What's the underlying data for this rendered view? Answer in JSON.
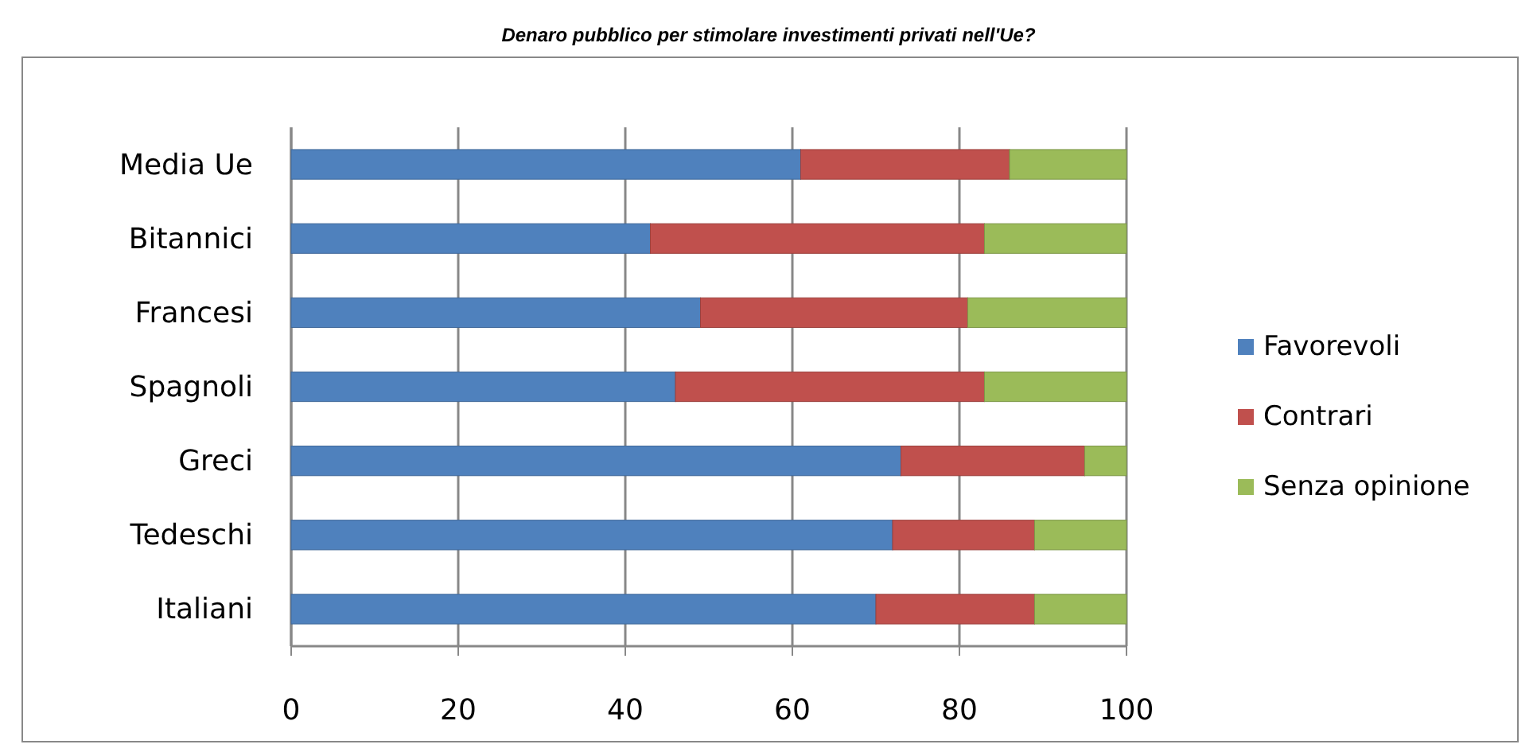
{
  "chart_data": {
    "type": "bar",
    "title": "Denaro pubblico per stimolare investimenti privati nell'Ue?",
    "orientation": "horizontal",
    "stacked": true,
    "categories": [
      "Media Ue",
      "Bitannici",
      "Francesi",
      "Spagnoli",
      "Greci",
      "Tedeschi",
      "Italiani"
    ],
    "series": [
      {
        "name": "Favorevoli",
        "color": "#4f81bd",
        "values": [
          61,
          43,
          49,
          46,
          73,
          72,
          70
        ]
      },
      {
        "name": "Contrari",
        "color": "#c0504d",
        "values": [
          25,
          40,
          32,
          37,
          22,
          17,
          19
        ]
      },
      {
        "name": "Senza opinione",
        "color": "#9bbb59",
        "values": [
          14,
          17,
          19,
          17,
          5,
          11,
          11
        ]
      }
    ],
    "xlim": [
      0,
      100
    ],
    "xticks": [
      0,
      20,
      40,
      60,
      80,
      100
    ],
    "grid": "x",
    "legend": "right"
  }
}
